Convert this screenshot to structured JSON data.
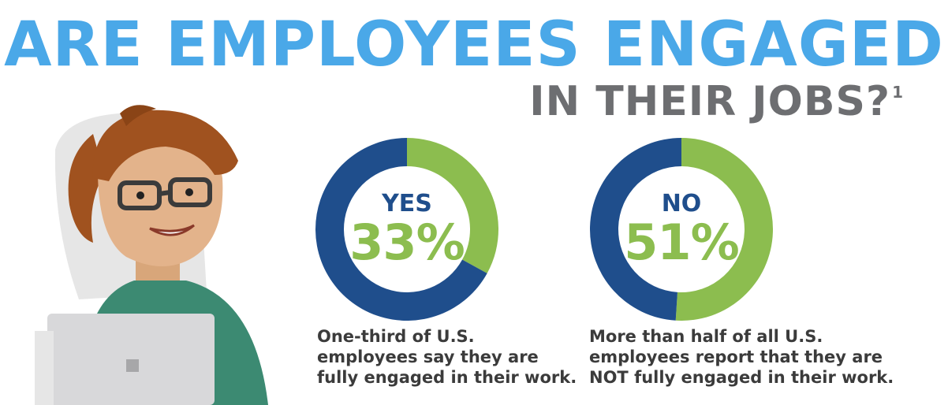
{
  "title": {
    "line1": "ARE EMPLOYEES ENGAGED",
    "line2": "IN THEIR JOBS?",
    "footnote_marker": "1"
  },
  "colors": {
    "title_blue": "#4aa8e8",
    "title_gray": "#6d6e71",
    "dark_blue": "#1f4e8c",
    "green": "#8cbd4f",
    "caption_text": "#3b3b3b"
  },
  "chart_data": [
    {
      "type": "pie",
      "variant": "donut",
      "label": "YES",
      "value_label": "33%",
      "slices": [
        {
          "category": "YES",
          "value": 33,
          "color": "#8cbd4f"
        },
        {
          "category": "",
          "value": 67,
          "color": "#1f4e8c"
        }
      ],
      "caption": [
        "One-third of U.S.",
        "employees say they are",
        "fully engaged in their work."
      ]
    },
    {
      "type": "pie",
      "variant": "donut",
      "label": "NO",
      "value_label": "51%",
      "slices": [
        {
          "category": "NO",
          "value": 51,
          "color": "#8cbd4f"
        },
        {
          "category": "",
          "value": 49,
          "color": "#1f4e8c"
        }
      ],
      "caption": [
        "More than half of all U.S.",
        "employees report that they are",
        "NOT fully engaged in their work."
      ]
    }
  ]
}
